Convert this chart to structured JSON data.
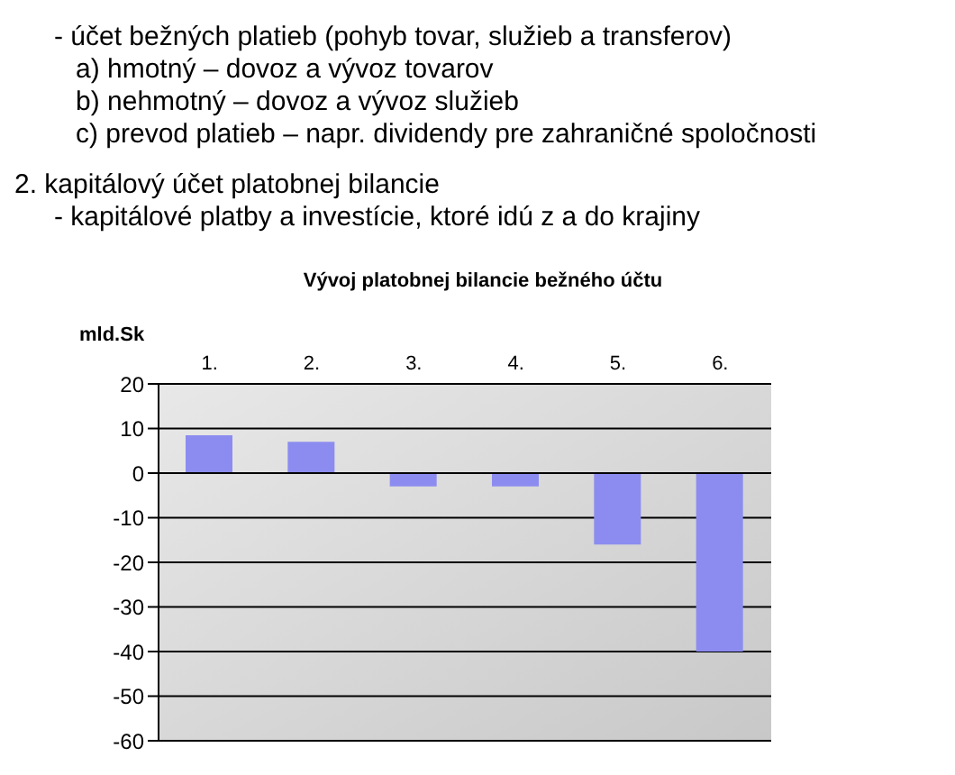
{
  "chart_data": {
    "type": "bar",
    "title": "Vývoj platobnej bilancie bežného účtu",
    "ylabel": "mld.Sk",
    "categories": [
      "1.",
      "2.",
      "3.",
      "4.",
      "5.",
      "6."
    ],
    "values": [
      8.5,
      7,
      -3,
      -3,
      -16,
      -40
    ],
    "color": "#8c8cf0",
    "ylim": [
      -60,
      20
    ],
    "yticks": [
      20,
      10,
      0,
      -10,
      -20,
      -30,
      -40,
      -50,
      -60
    ],
    "grid": "y",
    "legend": false,
    "annotations": [
      "- účet bežných platieb (pohyb tovar, služieb a transferov)",
      "a) hmotný – dovoz a vývoz tovarov",
      "b) nehmotný – dovoz a vývoz služieb",
      "c) prevod platieb – napr. dividendy pre zahraničné spoločnosti",
      "2. kapitálový účet platobnej bilancie",
      "- kapitálové platby a investície, ktoré idú z a do krajiny"
    ]
  }
}
